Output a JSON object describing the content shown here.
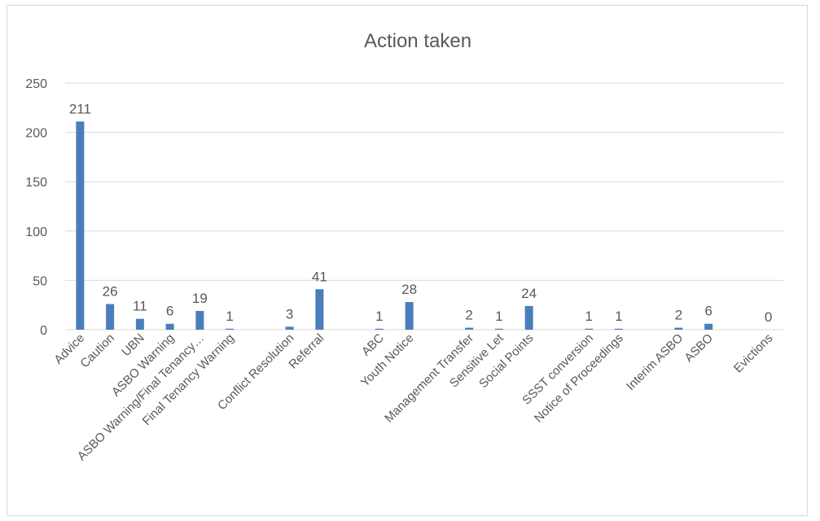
{
  "chart_data": {
    "type": "bar",
    "title": "Action taken",
    "xlabel": "",
    "ylabel": "",
    "ylim": [
      0,
      250
    ],
    "yticks": [
      0,
      50,
      100,
      150,
      200,
      250
    ],
    "grid": true,
    "categories": [
      "Advice",
      "Caution",
      "UBN",
      "ASBO Warning",
      "ASBO Warning/Final Tenancy…",
      "Final Tenancy Warning",
      "",
      "Conflict Resolution",
      "Referral",
      "",
      "ABC",
      "Youth Notice",
      "",
      "Management Transfer",
      "Sensitive Let",
      "Social Points",
      "",
      "SSST conversion",
      "Notice of Proceedings",
      "",
      "Interim ASBO",
      "ASBO",
      "",
      "Evictions"
    ],
    "values": [
      211,
      26,
      11,
      6,
      19,
      1,
      null,
      3,
      41,
      null,
      1,
      28,
      null,
      2,
      1,
      24,
      null,
      1,
      1,
      null,
      2,
      6,
      null,
      0
    ],
    "data_labels": [
      "211",
      "26",
      "11",
      "6",
      "19",
      "1",
      "",
      "3",
      "41",
      "",
      "1",
      "28",
      "",
      "2",
      "1",
      "24",
      "",
      "1",
      "1",
      "",
      "2",
      "6",
      "",
      "0"
    ],
    "bar_color": "#4a7ebb"
  }
}
